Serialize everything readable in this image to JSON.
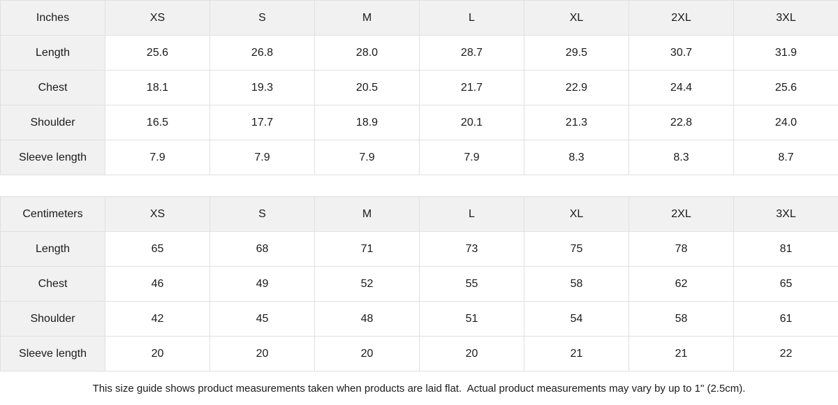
{
  "chart_data": [
    {
      "type": "table",
      "unit": "Inches",
      "columns": [
        "XS",
        "S",
        "M",
        "L",
        "XL",
        "2XL",
        "3XL"
      ],
      "rows": [
        {
          "label": "Length",
          "values": [
            "25.6",
            "26.8",
            "28.0",
            "28.7",
            "29.5",
            "30.7",
            "31.9"
          ]
        },
        {
          "label": "Chest",
          "values": [
            "18.1",
            "19.3",
            "20.5",
            "21.7",
            "22.9",
            "24.4",
            "25.6"
          ]
        },
        {
          "label": "Shoulder",
          "values": [
            "16.5",
            "17.7",
            "18.9",
            "20.1",
            "21.3",
            "22.8",
            "24.0"
          ]
        },
        {
          "label": "Sleeve length",
          "values": [
            "7.9",
            "7.9",
            "7.9",
            "7.9",
            "8.3",
            "8.3",
            "8.7"
          ]
        }
      ]
    },
    {
      "type": "table",
      "unit": "Centimeters",
      "columns": [
        "XS",
        "S",
        "M",
        "L",
        "XL",
        "2XL",
        "3XL"
      ],
      "rows": [
        {
          "label": "Length",
          "values": [
            "65",
            "68",
            "71",
            "73",
            "75",
            "78",
            "81"
          ]
        },
        {
          "label": "Chest",
          "values": [
            "46",
            "49",
            "52",
            "55",
            "58",
            "62",
            "65"
          ]
        },
        {
          "label": "Shoulder",
          "values": [
            "42",
            "45",
            "48",
            "51",
            "54",
            "58",
            "61"
          ]
        },
        {
          "label": "Sleeve length",
          "values": [
            "20",
            "20",
            "20",
            "20",
            "21",
            "21",
            "22"
          ]
        }
      ]
    }
  ],
  "footer": {
    "note": "This size guide shows product measurements taken when products are laid flat.  Actual product measurements may vary by up to 1\" (2.5cm)."
  },
  "colors": {
    "header_bg": "#f1f1f1",
    "border": "#e0e0e0",
    "text": "#1a1a1a",
    "background": "#ffffff"
  }
}
